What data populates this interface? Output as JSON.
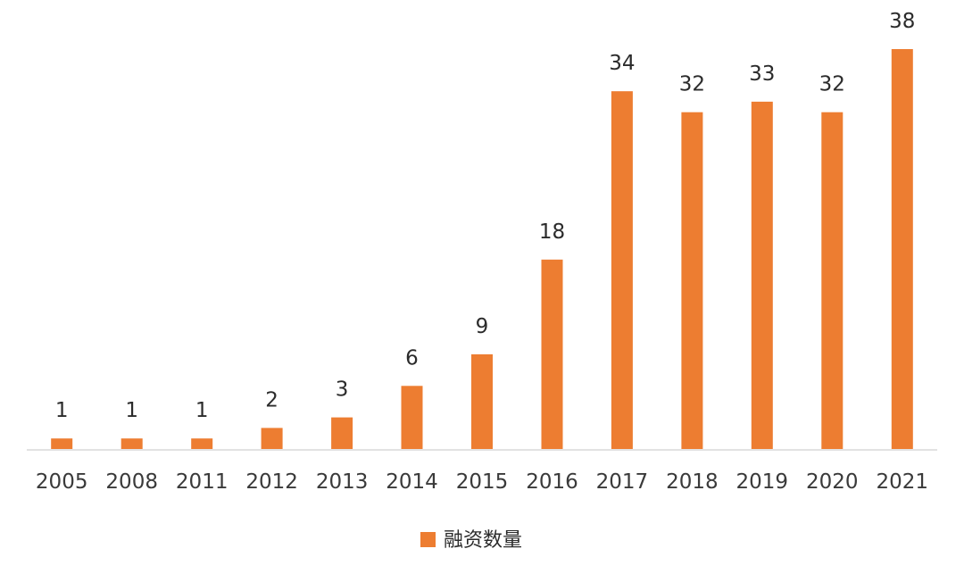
{
  "chart_data": {
    "type": "bar",
    "categories": [
      "2005",
      "2008",
      "2011",
      "2012",
      "2013",
      "2014",
      "2015",
      "2016",
      "2017",
      "2018",
      "2019",
      "2020",
      "2021"
    ],
    "series": [
      {
        "name": "融资数量",
        "values": [
          1,
          1,
          1,
          2,
          3,
          6,
          9,
          18,
          34,
          32,
          33,
          32,
          38
        ],
        "color": "#ED7D31"
      }
    ],
    "ylim": [
      0,
      38
    ],
    "grid": false,
    "data_labels": true,
    "legend_position": "bottom"
  },
  "colors": {
    "bar": "#ED7D31",
    "axis": "#D9D9D9",
    "text": "#2b2b2b"
  }
}
